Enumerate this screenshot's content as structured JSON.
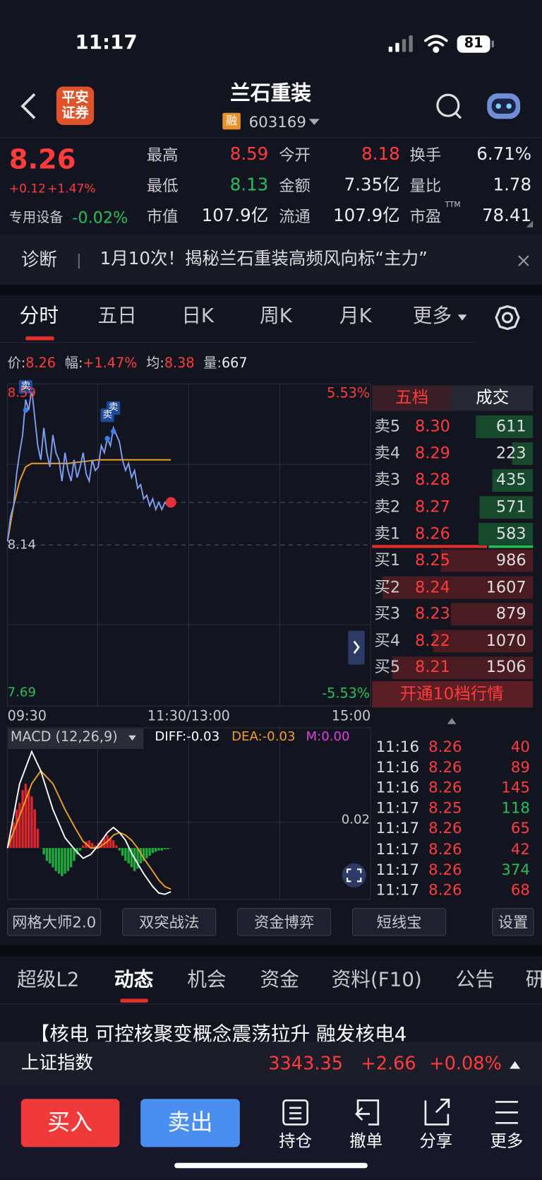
{
  "status_bar": {
    "time": "11:17",
    "battery": "81"
  },
  "header": {
    "logo": [
      "平安",
      "证券"
    ],
    "title": "兰石重装",
    "badge": "融",
    "code": "603169"
  },
  "quote": {
    "price": "8.26",
    "change": "+0.12",
    "change_pct": "+1.47%",
    "sector": "专用设备",
    "sector_pct": "-0.02%",
    "stats": [
      [
        "最高",
        "8.59"
      ],
      [
        "今开",
        "8.18"
      ],
      [
        "换手",
        "6.71%"
      ],
      [
        "最低",
        "8.13"
      ],
      [
        "金额",
        "7.35亿"
      ],
      [
        "量比",
        "1.78"
      ],
      [
        "市值",
        "107.9亿"
      ],
      [
        "流通",
        "107.9亿"
      ],
      [
        "市盈",
        "78.41"
      ]
    ],
    "ttm": "TTM"
  },
  "banner": {
    "label": "诊断",
    "text": "1月10次！揭秘兰石重装高频风向标“主力”"
  },
  "chart_tabs": [
    "分时",
    "五日",
    "日K",
    "周K",
    "月K",
    "更多"
  ],
  "info": [
    [
      "价:",
      "8.26"
    ],
    [
      "幅:",
      "+1.47%"
    ],
    [
      "均:",
      "8.38"
    ],
    [
      "量:",
      "667"
    ]
  ],
  "intraday": {
    "xlim": [
      0,
      240
    ],
    "ylim": [
      7.69,
      8.59
    ],
    "yticks": [
      7.69,
      8.14,
      8.59
    ],
    "pct_labels": [
      "5.53%",
      "-5.53%"
    ],
    "time_labels": [
      "09:30",
      "11:30/13:00",
      "15:00"
    ],
    "x": [
      0,
      2,
      4,
      6,
      8,
      10,
      12,
      14,
      16,
      18,
      20,
      22,
      24,
      26,
      28,
      30,
      32,
      34,
      36,
      38,
      40,
      42,
      44,
      46,
      48,
      50,
      52,
      54,
      56,
      58,
      60,
      62,
      64,
      66,
      68,
      70,
      72,
      74,
      76,
      78,
      80,
      82,
      84,
      86,
      88,
      90,
      92,
      94,
      96,
      98,
      100,
      102,
      104,
      106,
      108
    ],
    "price": [
      8.15,
      8.22,
      8.25,
      8.34,
      8.4,
      8.45,
      8.55,
      8.52,
      8.58,
      8.5,
      8.42,
      8.38,
      8.47,
      8.4,
      8.36,
      8.45,
      8.4,
      8.38,
      8.32,
      8.4,
      8.35,
      8.32,
      8.38,
      8.33,
      8.36,
      8.4,
      8.34,
      8.32,
      8.38,
      8.35,
      8.36,
      8.42,
      8.4,
      8.44,
      8.42,
      8.47,
      8.45,
      8.43,
      8.38,
      8.35,
      8.37,
      8.33,
      8.35,
      8.3,
      8.31,
      8.27,
      8.28,
      8.25,
      8.27,
      8.24,
      8.26,
      8.24,
      8.26,
      8.25,
      8.26
    ],
    "avg_x": [
      0,
      4,
      8,
      12,
      16,
      24,
      40,
      60,
      80,
      100,
      108
    ],
    "avg": [
      8.15,
      8.25,
      8.32,
      8.36,
      8.37,
      8.37,
      8.37,
      8.38,
      8.38,
      8.38,
      8.38
    ],
    "signals": [
      {
        "text": "卖",
        "x": 12,
        "price": 8.52
      },
      {
        "text": "卖",
        "x": 66,
        "price": 8.44
      },
      {
        "text": "卖",
        "x": 70,
        "price": 8.46
      }
    ]
  },
  "macd": {
    "title": "MACD (12,26,9)",
    "diff": "DIFF:-0.03",
    "dea": "DEA:-0.03",
    "m": "M:0.00",
    "ylim": [
      -0.04,
      0.08
    ],
    "yticks": [
      0.02
    ],
    "m_values": [
      0,
      0.01,
      0.02,
      0.03,
      0.035,
      0.045,
      0.05,
      0.045,
      0.04,
      0.03,
      0.015,
      0,
      -0.005,
      -0.01,
      -0.012,
      -0.015,
      -0.018,
      -0.02,
      -0.022,
      -0.02,
      -0.018,
      -0.015,
      -0.01,
      -0.005,
      -0.002,
      0.002,
      0.005,
      0.006,
      0.004,
      0.002,
      0.004,
      0.006,
      0.008,
      0.01,
      0.008,
      0.006,
      0.002,
      -0.002,
      -0.006,
      -0.01,
      -0.012,
      -0.015,
      -0.018,
      -0.016,
      -0.012,
      -0.01,
      -0.008,
      -0.006,
      -0.004,
      -0.003,
      -0.002,
      -0.002,
      -0.001,
      -0.001,
      0
    ],
    "line_x": [
      0,
      8,
      16,
      22,
      30,
      38,
      45,
      50,
      55,
      60,
      66,
      70,
      74,
      78,
      82,
      86,
      90,
      96,
      100,
      104,
      108
    ],
    "diff_values": [
      0,
      0.05,
      0.075,
      0.06,
      0.03,
      0.008,
      -0.002,
      -0.008,
      -0.005,
      0.002,
      0.012,
      0.016,
      0.012,
      0.006,
      -0.004,
      -0.012,
      -0.02,
      -0.03,
      -0.035,
      -0.036,
      -0.034
    ],
    "dea_values": [
      0,
      0.025,
      0.05,
      0.06,
      0.05,
      0.03,
      0.015,
      0.005,
      0,
      0,
      0.005,
      0.01,
      0.012,
      0.01,
      0.006,
      0,
      -0.008,
      -0.018,
      -0.025,
      -0.03,
      -0.032
    ]
  },
  "order_book": {
    "tabs": [
      "五档",
      "成交"
    ],
    "asks": [
      {
        "label": "卖5",
        "price": "8.30",
        "volume": 611
      },
      {
        "label": "卖4",
        "price": "8.29",
        "volume": 223
      },
      {
        "label": "卖3",
        "price": "8.28",
        "volume": 435
      },
      {
        "label": "卖2",
        "price": "8.27",
        "volume": 571
      },
      {
        "label": "卖1",
        "price": "8.26",
        "volume": 583
      }
    ],
    "bids": [
      {
        "label": "买1",
        "price": "8.25",
        "volume": 986
      },
      {
        "label": "买2",
        "price": "8.24",
        "volume": 1607
      },
      {
        "label": "买3",
        "price": "8.23",
        "volume": 879
      },
      {
        "label": "买4",
        "price": "8.22",
        "volume": 1070
      },
      {
        "label": "买5",
        "price": "8.21",
        "volume": 1506
      }
    ],
    "upgrade": "开通10档行情"
  },
  "trades": [
    {
      "time": "11:16",
      "price": "8.26",
      "volume": "40",
      "color": "#ff3b3b"
    },
    {
      "time": "11:16",
      "price": "8.26",
      "volume": "89",
      "color": "#ff3b3b"
    },
    {
      "time": "11:16",
      "price": "8.26",
      "volume": "145",
      "color": "#ff3b3b"
    },
    {
      "time": "11:17",
      "price": "8.25",
      "volume": "118",
      "color": "#26c05a"
    },
    {
      "time": "11:17",
      "price": "8.26",
      "volume": "65",
      "color": "#ff3b3b"
    },
    {
      "time": "11:17",
      "price": "8.26",
      "volume": "42",
      "color": "#ff3b3b"
    },
    {
      "time": "11:17",
      "price": "8.26",
      "volume": "374",
      "color": "#26c05a"
    },
    {
      "time": "11:17",
      "price": "8.26",
      "volume": "68",
      "color": "#ff3b3b"
    }
  ],
  "tools": [
    "网格大师2.0",
    "双突战法",
    "资金博弈",
    "短线宝",
    "设置"
  ],
  "info_tabs": [
    "超级L2",
    "动态",
    "机会",
    "资金",
    "资料(F10)",
    "公告",
    "研"
  ],
  "news": "【核电  可控核聚变概念震荡拉升 融发核电4",
  "index": {
    "name": "上证指数",
    "value": "3343.35",
    "change": "+2.66",
    "change_pct": "+0.08%"
  },
  "actions": {
    "buy": "买入",
    "sell": "卖出",
    "items": [
      "持仓",
      "撤单",
      "分享",
      "更多"
    ]
  }
}
